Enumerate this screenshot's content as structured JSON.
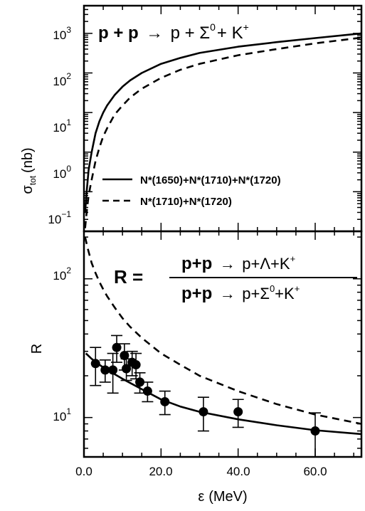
{
  "chart_data": [
    {
      "type": "line",
      "panel": "top",
      "title_parts": {
        "lhs": "p + p",
        "arrow": "→",
        "rhs_1": "p + Σ",
        "sup_1": "0",
        "rhs_2": "+ K",
        "sup_2": "+"
      },
      "ylabel_main": "σ",
      "ylabel_sub": "tot",
      "ylabel_unit": "(nb)",
      "yscale": "log",
      "xlim": [
        0,
        72
      ],
      "ylim": [
        0.01,
        5000
      ],
      "ytick_labels": [
        {
          "base": "10",
          "exp": "3",
          "value": 1000
        },
        {
          "base": "10",
          "exp": "2",
          "value": 100
        },
        {
          "base": "10",
          "exp": "1",
          "value": 10
        },
        {
          "base": "10",
          "exp": "0",
          "value": 1
        },
        {
          "base": "10",
          "exp": "−1",
          "value": 0.1
        }
      ],
      "series": [
        {
          "name": "N*(1650)+N*(1710)+N*(1720)",
          "style": "solid",
          "x": [
            0.3,
            0.7,
            1.2,
            2,
            3,
            4,
            5,
            6,
            8,
            10,
            12,
            15,
            20,
            25,
            30,
            40,
            50,
            60,
            72
          ],
          "y": [
            0.03,
            0.1,
            0.35,
            1,
            3,
            6,
            10,
            15,
            28,
            45,
            65,
            100,
            170,
            240,
            320,
            460,
            600,
            760,
            1000
          ]
        },
        {
          "name": "N*(1710)+N*(1720)",
          "style": "dashed",
          "x": [
            0.3,
            0.7,
            1.2,
            2,
            3,
            4,
            5,
            6,
            8,
            10,
            12,
            15,
            20,
            25,
            30,
            40,
            50,
            60,
            72
          ],
          "y": [
            0.012,
            0.03,
            0.08,
            0.2,
            0.6,
            1.3,
            2.5,
            4,
            9,
            15,
            24,
            40,
            75,
            120,
            170,
            280,
            400,
            560,
            780
          ]
        }
      ]
    },
    {
      "type": "line",
      "panel": "bottom",
      "ylabel": "R",
      "xlabel_sym": "ε",
      "xlabel_unit": "(MeV)",
      "yscale": "log",
      "xlim": [
        0,
        72
      ],
      "ylim": [
        5.2,
        220
      ],
      "ytick_labels": [
        {
          "base": "10",
          "exp": "2",
          "value": 100
        },
        {
          "base": "10",
          "exp": "1",
          "value": 10
        }
      ],
      "xtick_labels": [
        {
          "label": "0.0",
          "value": 0
        },
        {
          "label": "20.0",
          "value": 20
        },
        {
          "label": "40.0",
          "value": 40
        },
        {
          "label": "60.0",
          "value": 60
        }
      ],
      "equation": {
        "lhs": "R =",
        "num_bold": "p+p",
        "num_arrow": "→",
        "num_rest": "p+Λ+K",
        "num_sup": "+",
        "den_bold": "p+p",
        "den_arrow": "→",
        "den_rest_1": "p+Σ",
        "den_sup_1": "0",
        "den_rest_2": "+K",
        "den_sup_2": "+"
      },
      "series": [
        {
          "name": "solid",
          "style": "solid",
          "x": [
            0.5,
            2,
            4,
            6,
            8,
            10,
            15,
            20,
            25,
            30,
            40,
            50,
            60,
            72
          ],
          "y": [
            29,
            26.5,
            24,
            22,
            20.5,
            19,
            16,
            13.5,
            12,
            11,
            9.7,
            8.8,
            8.1,
            7.6
          ]
        },
        {
          "name": "dashed",
          "style": "dashed",
          "x": [
            0.3,
            1,
            2,
            3,
            4,
            5,
            6,
            8,
            10,
            12,
            15,
            20,
            25,
            30,
            40,
            50,
            60,
            72
          ],
          "y": [
            200,
            165,
            130,
            110,
            95,
            84,
            75,
            62,
            52,
            45,
            37.5,
            29,
            24,
            20,
            15.5,
            12.5,
            10.5,
            9
          ]
        }
      ],
      "points": [
        {
          "x": 3.0,
          "y": 24.5,
          "err": 7.5
        },
        {
          "x": 5.5,
          "y": 22,
          "err": 4
        },
        {
          "x": 7.5,
          "y": 22,
          "err": 7
        },
        {
          "x": 8.5,
          "y": 32,
          "err": 7
        },
        {
          "x": 10.5,
          "y": 28,
          "err": 6
        },
        {
          "x": 11.0,
          "y": 22.5,
          "err": 4
        },
        {
          "x": 12.5,
          "y": 25,
          "err": 5
        },
        {
          "x": 13.5,
          "y": 24,
          "err": 5
        },
        {
          "x": 14.5,
          "y": 18,
          "err": 3
        },
        {
          "x": 16.5,
          "y": 15.5,
          "err": 2.5
        },
        {
          "x": 21.0,
          "y": 13,
          "err": 2.5
        },
        {
          "x": 31.0,
          "y": 11,
          "err": 3
        },
        {
          "x": 40.0,
          "y": 11,
          "err": 2.5
        },
        {
          "x": 60.0,
          "y": 8,
          "err": 2.8
        }
      ]
    }
  ]
}
